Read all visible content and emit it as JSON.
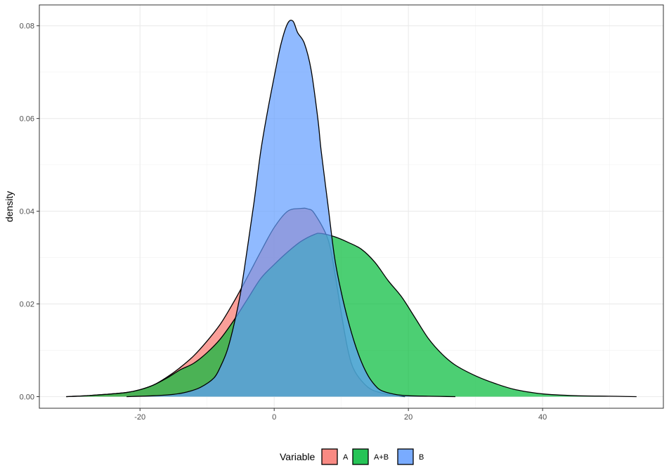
{
  "chart_data": {
    "type": "area",
    "title": "",
    "xlabel": "",
    "ylabel": "density",
    "xlim": [
      -35,
      58
    ],
    "ylim": [
      -0.0025,
      0.0845
    ],
    "x_ticks": [
      -20,
      0,
      20,
      40
    ],
    "x_tick_labels": [
      "-20",
      "0",
      "20",
      "40"
    ],
    "y_ticks": [
      0,
      0.02,
      0.04,
      0.06,
      0.08
    ],
    "y_tick_labels": [
      "0.00",
      "0.02",
      "0.04",
      "0.06",
      "0.08"
    ],
    "grid": true,
    "legend": {
      "title": "Variable",
      "position": "bottom",
      "entries": [
        "A",
        "A+B",
        "B"
      ]
    },
    "series": [
      {
        "name": "A",
        "color": "#F8766D",
        "x": [
          -31,
          -28,
          -25,
          -22,
          -20,
          -18,
          -16,
          -14,
          -12,
          -10,
          -8,
          -6,
          -4,
          -2,
          0,
          2,
          4,
          5,
          6,
          8,
          9,
          10,
          11,
          12,
          14,
          16,
          18,
          19.5
        ],
        "y": [
          0,
          0.0002,
          0.0005,
          0.0009,
          0.0015,
          0.0025,
          0.0042,
          0.0063,
          0.0088,
          0.012,
          0.0157,
          0.0205,
          0.0258,
          0.0313,
          0.0365,
          0.04,
          0.0406,
          0.0405,
          0.0395,
          0.034,
          0.027,
          0.018,
          0.01,
          0.0055,
          0.002,
          0.0008,
          0.0002,
          0
        ]
      },
      {
        "name": "A+B",
        "color": "#00BA38",
        "x": [
          -31,
          -28,
          -25,
          -22,
          -20,
          -18,
          -16,
          -14,
          -12,
          -10,
          -8,
          -6,
          -4,
          -2,
          0,
          2,
          4,
          6,
          7,
          9,
          11,
          13,
          15,
          17,
          19,
          21,
          23,
          25,
          27,
          30,
          33,
          36,
          40,
          45,
          50,
          54
        ],
        "y": [
          0,
          0.0002,
          0.0005,
          0.0009,
          0.0015,
          0.0025,
          0.004,
          0.0058,
          0.0072,
          0.0095,
          0.0125,
          0.0165,
          0.021,
          0.0255,
          0.0285,
          0.0312,
          0.0335,
          0.035,
          0.0352,
          0.0345,
          0.0333,
          0.0318,
          0.029,
          0.025,
          0.0215,
          0.017,
          0.0125,
          0.0092,
          0.0068,
          0.0045,
          0.0028,
          0.0015,
          0.0006,
          0.0002,
          0.0001,
          0
        ]
      },
      {
        "name": "B",
        "color": "#619CFF",
        "x": [
          -22,
          -18,
          -15,
          -13,
          -11,
          -9,
          -8,
          -7,
          -6,
          -5,
          -4,
          -3,
          -2,
          -1,
          0,
          1,
          2,
          2.8,
          3.5,
          4.5,
          5.5,
          6.5,
          7,
          8,
          9,
          10,
          11,
          12,
          13,
          14,
          15,
          16,
          18,
          20,
          23,
          27
        ],
        "y": [
          0,
          0.0002,
          0.0005,
          0.001,
          0.002,
          0.004,
          0.0065,
          0.01,
          0.0155,
          0.0225,
          0.032,
          0.042,
          0.053,
          0.0615,
          0.069,
          0.076,
          0.0805,
          0.081,
          0.0785,
          0.0762,
          0.0705,
          0.06,
          0.053,
          0.0415,
          0.03,
          0.0225,
          0.0165,
          0.0115,
          0.0075,
          0.0045,
          0.0025,
          0.0013,
          0.0005,
          0.0002,
          0.0001,
          0
        ]
      }
    ]
  }
}
